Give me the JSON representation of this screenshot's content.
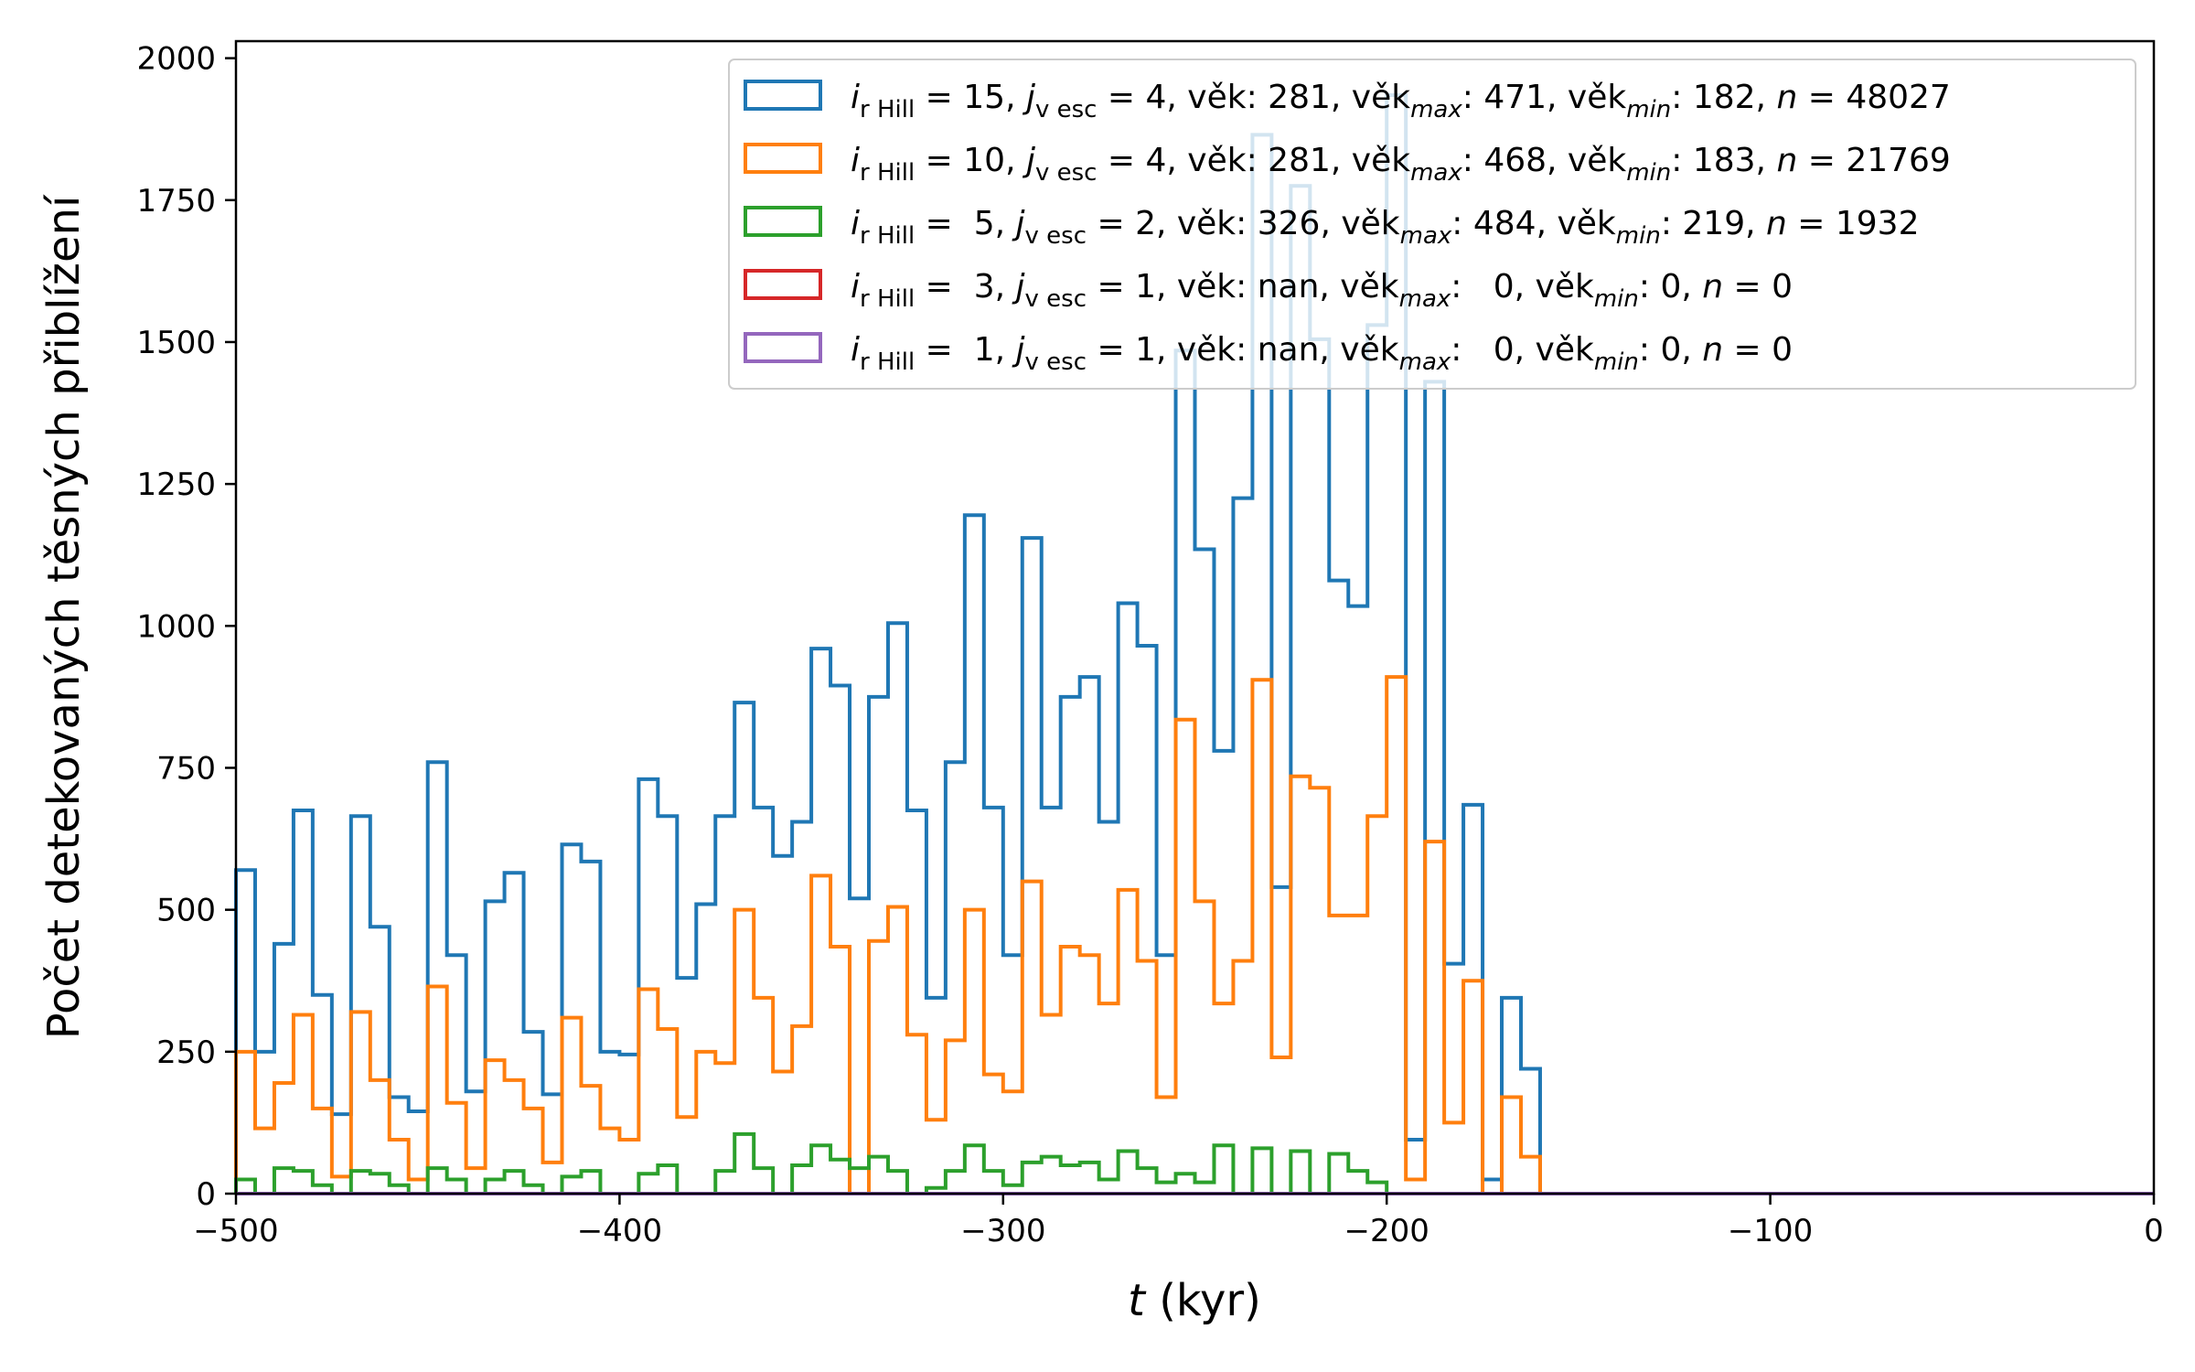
{
  "chart_data": {
    "type": "histogram",
    "xlabel_var": "t",
    "xlabel_unit": " (kyr)",
    "ylabel": "Počet detekovaných těsných přiblížení",
    "xlim": [
      -500,
      0
    ],
    "ylim": [
      0,
      2030
    ],
    "x_ticks": [
      -500,
      -400,
      -300,
      -200,
      -100,
      0
    ],
    "x_tick_labels": [
      "−500",
      "−400",
      "−300",
      "−200",
      "−100",
      "0"
    ],
    "y_ticks": [
      0,
      250,
      500,
      750,
      1000,
      1250,
      1500,
      1750,
      2000
    ],
    "y_tick_labels": [
      "0",
      "250",
      "500",
      "750",
      "1000",
      "1250",
      "1500",
      "1750",
      "2000"
    ],
    "bin_width": 5,
    "x_bin_edges_start": -500,
    "legend_position": "top-right",
    "series": [
      {
        "i": "15",
        "j": "4",
        "vek": "281",
        "vek_max": "471",
        "vek_min": "182",
        "n": "48027",
        "color": "#1f77b4",
        "values": [
          570,
          250,
          440,
          675,
          350,
          140,
          665,
          470,
          170,
          145,
          760,
          420,
          180,
          515,
          565,
          285,
          175,
          615,
          585,
          250,
          245,
          730,
          665,
          380,
          510,
          665,
          865,
          680,
          595,
          655,
          960,
          895,
          520,
          875,
          1005,
          675,
          345,
          760,
          1195,
          680,
          420,
          1155,
          680,
          875,
          910,
          655,
          1040,
          965,
          420,
          1485,
          1135,
          780,
          1225,
          1865,
          540,
          1775,
          1505,
          1080,
          1035,
          1530,
          1935,
          95,
          1430,
          405,
          685,
          25,
          345,
          220,
          0,
          0,
          0,
          0,
          0,
          0,
          0,
          0,
          0,
          0,
          0,
          0,
          0,
          0,
          0,
          0,
          0,
          0,
          0,
          0,
          0,
          0,
          0,
          0,
          0,
          0,
          0,
          0,
          0,
          0,
          0,
          0
        ]
      },
      {
        "i": "10",
        "j": "4",
        "vek": "281",
        "vek_max": "468",
        "vek_min": "183",
        "n": "21769",
        "color": "#ff7f0e",
        "values": [
          250,
          115,
          195,
          315,
          150,
          30,
          320,
          200,
          95,
          25,
          365,
          160,
          45,
          235,
          200,
          150,
          55,
          310,
          190,
          115,
          95,
          360,
          290,
          135,
          250,
          230,
          500,
          345,
          215,
          295,
          560,
          435,
          0,
          445,
          505,
          280,
          130,
          270,
          500,
          210,
          180,
          550,
          315,
          435,
          420,
          335,
          535,
          410,
          170,
          835,
          515,
          335,
          410,
          905,
          240,
          735,
          715,
          490,
          490,
          665,
          910,
          25,
          620,
          125,
          375,
          0,
          170,
          65,
          0,
          0,
          0,
          0,
          0,
          0,
          0,
          0,
          0,
          0,
          0,
          0,
          0,
          0,
          0,
          0,
          0,
          0,
          0,
          0,
          0,
          0,
          0,
          0,
          0,
          0,
          0,
          0,
          0,
          0,
          0,
          0
        ]
      },
      {
        "i": " 5",
        "j": "2",
        "vek": "326",
        "vek_max": "484",
        "vek_min": "219",
        "n": "1932",
        "color": "#2ca02c",
        "values": [
          25,
          0,
          45,
          40,
          15,
          0,
          40,
          35,
          15,
          0,
          45,
          25,
          0,
          25,
          40,
          15,
          0,
          30,
          40,
          0,
          0,
          35,
          50,
          0,
          0,
          40,
          105,
          45,
          0,
          50,
          85,
          60,
          45,
          65,
          40,
          0,
          10,
          40,
          85,
          40,
          15,
          55,
          65,
          50,
          55,
          25,
          75,
          45,
          20,
          35,
          20,
          85,
          0,
          80,
          0,
          75,
          0,
          70,
          40,
          20,
          0,
          0,
          0,
          0,
          0,
          0,
          0,
          0,
          0,
          0,
          0,
          0,
          0,
          0,
          0,
          0,
          0,
          0,
          0,
          0,
          0,
          0,
          0,
          0,
          0,
          0,
          0,
          0,
          0,
          0,
          0,
          0,
          0,
          0,
          0,
          0,
          0,
          0,
          0,
          0
        ]
      },
      {
        "i": " 3",
        "j": "1",
        "vek": "nan",
        "vek_max": "  0",
        "vek_min": "0",
        "n": "0",
        "color": "#d62728",
        "values": []
      },
      {
        "i": " 1",
        "j": "1",
        "vek": "nan",
        "vek_max": "  0",
        "vek_min": "0",
        "n": "0",
        "color": "#9467bd",
        "values": []
      }
    ]
  },
  "legend_template": {
    "i_sym": "i",
    "i_sub": "r Hill",
    "j_sym": "j",
    "j_sub": "v esc",
    "vek_label": "věk",
    "max_sub": "max",
    "min_sub": "min",
    "n_sym": "n"
  }
}
